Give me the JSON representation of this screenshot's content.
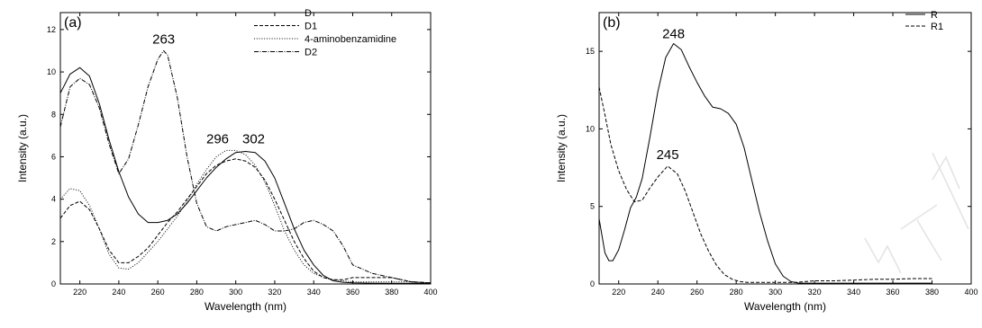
{
  "chart_data": [
    {
      "type": "line",
      "panel_label": "(a)",
      "xlabel": "Wavelength (nm)",
      "ylabel": "Intensity (a.u.)",
      "xlim": [
        210,
        400
      ],
      "ylim": [
        0,
        12.8
      ],
      "x_ticks": [
        220,
        240,
        260,
        280,
        300,
        320,
        340,
        360,
        380,
        400
      ],
      "y_ticks": [
        0,
        2,
        4,
        6,
        8,
        10,
        12
      ],
      "legend_position": "top-right",
      "grid": false,
      "annotations": [
        {
          "text": "263",
          "x": 263,
          "y": 11.0
        },
        {
          "text": "296",
          "x": 296,
          "y": 6.3
        },
        {
          "text": "302",
          "x": 302,
          "y": 6.3
        }
      ],
      "series": [
        {
          "name": "D",
          "dash": "solid",
          "x": [
            210,
            215,
            220,
            225,
            230,
            235,
            240,
            245,
            250,
            255,
            260,
            265,
            270,
            275,
            280,
            285,
            290,
            295,
            300,
            305,
            310,
            315,
            320,
            325,
            330,
            335,
            340,
            345,
            350,
            355,
            360,
            370,
            380,
            390,
            400
          ],
          "y": [
            9.0,
            9.9,
            10.2,
            9.8,
            8.5,
            6.8,
            5.3,
            4.1,
            3.3,
            2.9,
            2.9,
            3.0,
            3.3,
            3.8,
            4.4,
            5.0,
            5.5,
            5.9,
            6.2,
            6.25,
            6.2,
            5.8,
            5.0,
            3.8,
            2.6,
            1.6,
            0.9,
            0.4,
            0.15,
            0.08,
            0.05,
            0.04,
            0.03,
            0.03,
            0.03
          ]
        },
        {
          "name": "D1",
          "dash": "dashed",
          "x": [
            210,
            215,
            220,
            225,
            230,
            235,
            240,
            245,
            250,
            255,
            260,
            265,
            270,
            275,
            280,
            285,
            290,
            295,
            300,
            305,
            310,
            315,
            320,
            325,
            330,
            335,
            340,
            345,
            350,
            355,
            360,
            370,
            380,
            390,
            400
          ],
          "y": [
            3.1,
            3.7,
            3.9,
            3.5,
            2.6,
            1.6,
            1.0,
            1.0,
            1.3,
            1.7,
            2.3,
            2.9,
            3.4,
            4.0,
            4.6,
            5.2,
            5.6,
            5.8,
            5.9,
            5.8,
            5.5,
            4.9,
            4.0,
            3.0,
            2.0,
            1.2,
            0.6,
            0.3,
            0.2,
            0.2,
            0.3,
            0.3,
            0.3,
            0.1,
            0.05
          ]
        },
        {
          "name": "4-aminobenzamidine",
          "dash": "dotted",
          "x": [
            210,
            215,
            220,
            225,
            230,
            235,
            240,
            245,
            250,
            255,
            260,
            265,
            270,
            275,
            280,
            285,
            290,
            295,
            300,
            305,
            310,
            315,
            320,
            325,
            330,
            335,
            340,
            345,
            350,
            355,
            360,
            370,
            380,
            390,
            400
          ],
          "y": [
            4.0,
            4.5,
            4.4,
            3.7,
            2.6,
            1.4,
            0.75,
            0.7,
            1.0,
            1.5,
            2.0,
            2.6,
            3.2,
            3.9,
            4.7,
            5.4,
            6.0,
            6.3,
            6.3,
            6.1,
            5.6,
            4.8,
            3.7,
            2.5,
            1.6,
            0.9,
            0.5,
            0.3,
            0.2,
            0.15,
            0.1,
            0.1,
            0.1,
            0.1,
            0.05
          ]
        },
        {
          "name": "D2",
          "dash": "dashdot",
          "x": [
            210,
            215,
            220,
            225,
            230,
            235,
            240,
            245,
            250,
            255,
            260,
            263,
            265,
            270,
            275,
            280,
            285,
            290,
            295,
            300,
            305,
            310,
            315,
            320,
            325,
            330,
            335,
            340,
            345,
            350,
            355,
            360,
            370,
            380,
            390,
            400
          ],
          "y": [
            7.4,
            9.3,
            9.7,
            9.4,
            8.3,
            6.6,
            5.2,
            5.9,
            7.5,
            9.3,
            10.6,
            11.0,
            10.8,
            8.8,
            6.0,
            3.8,
            2.7,
            2.5,
            2.7,
            2.8,
            2.9,
            3.0,
            2.8,
            2.5,
            2.5,
            2.6,
            2.9,
            3.0,
            2.8,
            2.5,
            1.8,
            0.9,
            0.5,
            0.3,
            0.1,
            0.05
          ]
        }
      ]
    },
    {
      "type": "line",
      "panel_label": "(b)",
      "xlabel": "Wavelength (nm)",
      "ylabel": "Intensity (a.u.)",
      "xlim": [
        210,
        400
      ],
      "ylim": [
        0,
        17.5
      ],
      "x_ticks": [
        220,
        240,
        260,
        280,
        300,
        320,
        340,
        360,
        380,
        400
      ],
      "y_ticks": [
        0,
        5,
        10,
        15
      ],
      "legend_position": "top-right",
      "grid": false,
      "annotations": [
        {
          "text": "248",
          "x": 248,
          "y": 15.5
        },
        {
          "text": "245",
          "x": 245,
          "y": 7.6
        }
      ],
      "series": [
        {
          "name": "R",
          "dash": "solid",
          "x": [
            210,
            213,
            215,
            217,
            220,
            223,
            226,
            229,
            232,
            236,
            240,
            244,
            248,
            252,
            256,
            260,
            264,
            268,
            272,
            276,
            280,
            284,
            288,
            292,
            296,
            300,
            304,
            308,
            312,
            316,
            320,
            330,
            340,
            350,
            360,
            370,
            380
          ],
          "y": [
            4.2,
            2.0,
            1.5,
            1.5,
            2.2,
            3.5,
            4.9,
            5.6,
            6.8,
            9.5,
            12.4,
            14.6,
            15.5,
            15.1,
            14.0,
            13.0,
            12.1,
            11.4,
            11.3,
            11.0,
            10.3,
            8.8,
            6.7,
            4.6,
            2.8,
            1.3,
            0.5,
            0.15,
            0.05,
            0.05,
            0.05,
            0.05,
            0.05,
            0.05,
            0.05,
            0.05,
            0.05
          ]
        },
        {
          "name": "R1",
          "dash": "dashed",
          "x": [
            210,
            213,
            216,
            220,
            224,
            228,
            232,
            236,
            240,
            245,
            250,
            254,
            258,
            262,
            266,
            270,
            274,
            278,
            282,
            286,
            290,
            295,
            300,
            310,
            320,
            330,
            340,
            350,
            360,
            370,
            380
          ],
          "y": [
            12.7,
            10.9,
            9.0,
            7.3,
            6.1,
            5.3,
            5.4,
            6.2,
            6.9,
            7.6,
            7.1,
            6.0,
            4.6,
            3.2,
            2.1,
            1.2,
            0.6,
            0.3,
            0.15,
            0.1,
            0.1,
            0.1,
            0.1,
            0.1,
            0.2,
            0.2,
            0.25,
            0.3,
            0.3,
            0.35,
            0.35
          ]
        }
      ]
    }
  ]
}
